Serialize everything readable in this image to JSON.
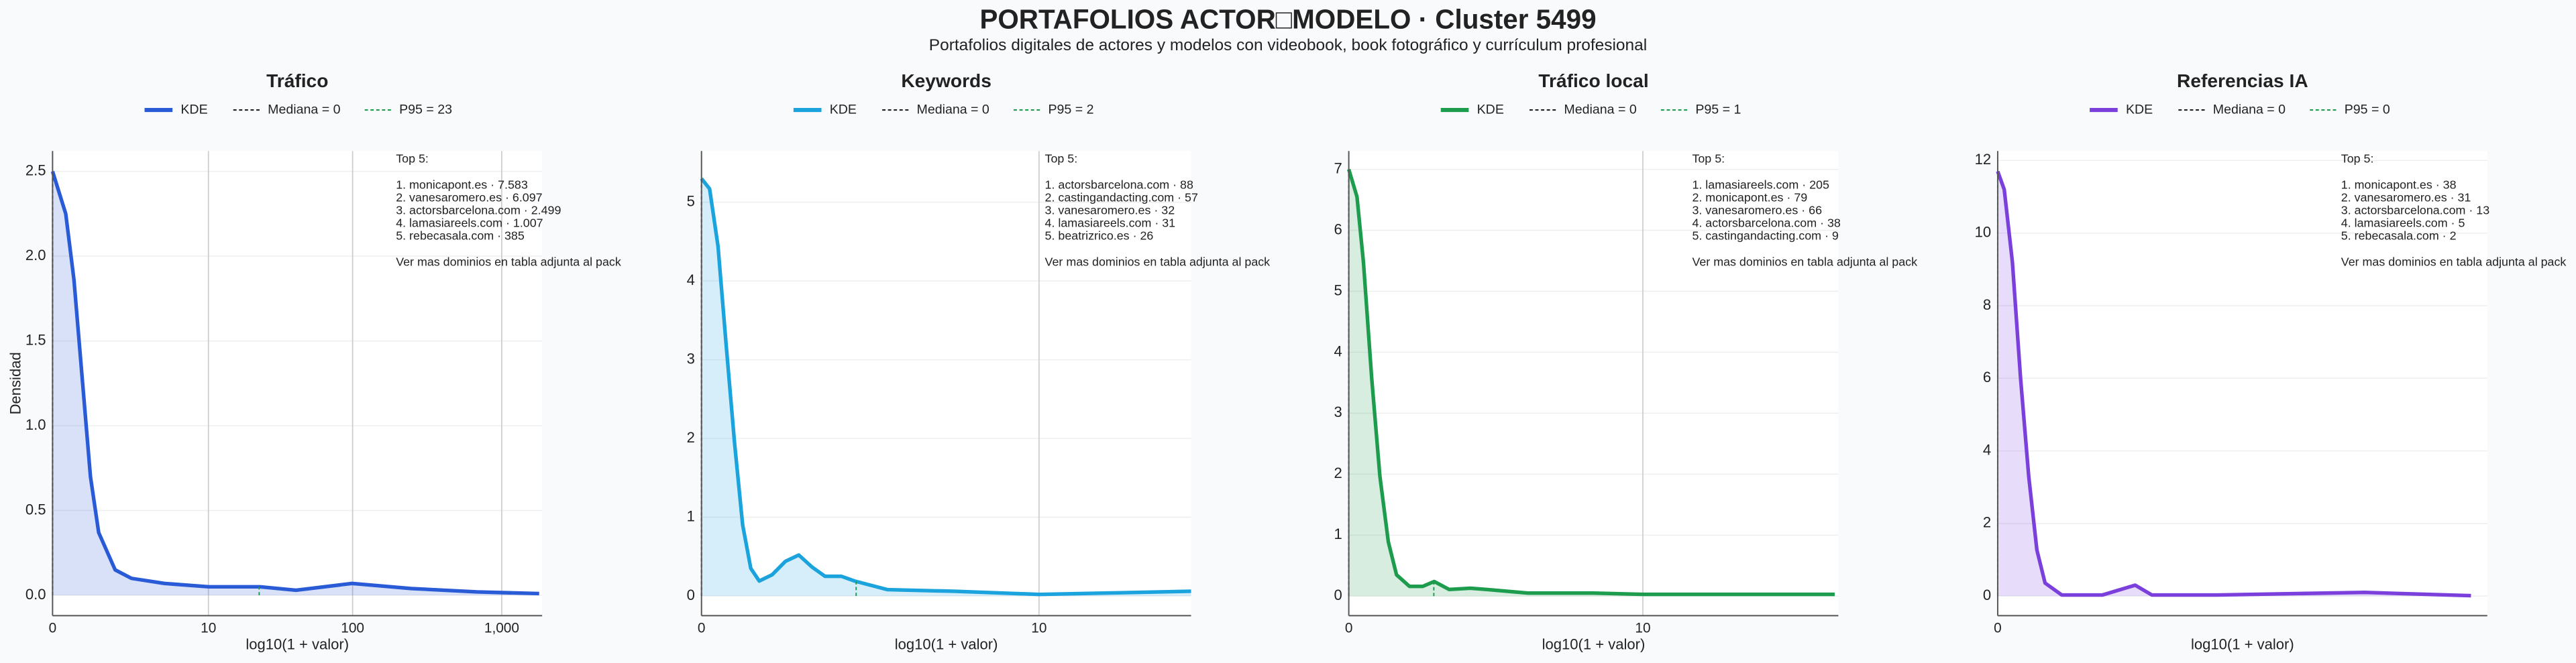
{
  "title": "PORTAFOLIOS ACTOR□MODELO · Cluster 5499",
  "subtitle": "Portafolios digitales de actores y modelos con videobook, book fotográfico y currículum profesional",
  "chart_data": [
    {
      "type": "line",
      "title": "Tráfico",
      "xlabel": "log10(1 + valor)",
      "ylabel": "Densidad",
      "grid": true,
      "series": [
        {
          "name": "KDE",
          "color": "#2a5bd7",
          "x": [
            0,
            0.088,
            0.143,
            0.198,
            0.253,
            0.308,
            0.418,
            0.527,
            0.747,
            1.044,
            1.385,
            1.626,
            2.0,
            2.396,
            2.835,
            3.25
          ],
          "values": [
            2.5,
            2.25,
            1.86,
            1.28,
            0.7,
            0.37,
            0.15,
            0.1,
            0.07,
            0.05,
            0.05,
            0.03,
            0.07,
            0.04,
            0.02,
            0.01
          ]
        }
      ],
      "median": {
        "name": "Mediana = 0",
        "x": 0
      },
      "p95": {
        "name": "P95 = 23",
        "x": 1.38
      },
      "xlim": [
        0,
        3.27
      ],
      "xticks": [
        0,
        {
          "value": 1.041,
          "label": "10"
        },
        {
          "value": 2.004,
          "label": "100"
        },
        {
          "value": 3.0,
          "label": "1,000"
        }
      ],
      "ylim": [
        -0.12,
        2.62
      ],
      "yticks": [
        {
          "value": 0,
          "label": "0.0"
        },
        0.5,
        {
          "value": 1,
          "label": "1.0"
        },
        1.5,
        {
          "value": 2,
          "label": "2.0"
        },
        2.5
      ],
      "annotation": {
        "header": "Top 5:",
        "items": [
          "1. monicapont.es · 7.583",
          "2. vanesaromero.es · 6.097",
          "3. actorsbarcelona.com · 2.499",
          "4. lamasiareels.com · 1.007",
          "5. rebecasala.com · 385"
        ],
        "footer": "Ver mas dominios en tabla adjunta al pack"
      }
    },
    {
      "type": "line",
      "title": "Keywords",
      "xlabel": "log10(1 + valor)",
      "grid": true,
      "series": [
        {
          "name": "KDE",
          "color": "#1aa3dc",
          "x": [
            0,
            0.025,
            0.051,
            0.076,
            0.102,
            0.127,
            0.152,
            0.178,
            0.218,
            0.259,
            0.3,
            0.34,
            0.381,
            0.431,
            0.472,
            0.574,
            0.777,
            1.041,
            1.284,
            1.51
          ],
          "values": [
            5.3,
            5.17,
            4.44,
            3.19,
            1.94,
            0.9,
            0.35,
            0.19,
            0.27,
            0.44,
            0.52,
            0.37,
            0.25,
            0.25,
            0.19,
            0.08,
            0.06,
            0.02,
            0.04,
            0.06
          ]
        }
      ],
      "median": {
        "name": "Mediana = 0",
        "x": 0
      },
      "p95": {
        "name": "P95 = 2",
        "x": 0.477
      },
      "xlim": [
        0,
        1.51
      ],
      "xticks": [
        0,
        {
          "value": 1.041,
          "label": "10"
        }
      ],
      "ylim": [
        -0.25,
        5.65
      ],
      "yticks": [
        0,
        1,
        2,
        3,
        4,
        5
      ],
      "annotation": {
        "header": "Top 5:",
        "items": [
          "1. actorsbarcelona.com · 88",
          "2. castingandacting.com · 57",
          "3. vanesaromero.es · 32",
          "4. lamasiareels.com · 31",
          "5. beatrizrico.es · 26"
        ],
        "footer": "Ver mas dominios en tabla adjunta al pack"
      }
    },
    {
      "type": "line",
      "title": "Tráfico local",
      "xlabel": "log10(1 + valor)",
      "grid": true,
      "series": [
        {
          "name": "KDE",
          "color": "#1e9c4e",
          "x": [
            0,
            0.029,
            0.052,
            0.081,
            0.11,
            0.14,
            0.169,
            0.215,
            0.262,
            0.302,
            0.355,
            0.43,
            0.488,
            0.634,
            0.866,
            1.041,
            1.39,
            1.72
          ],
          "values": [
            7.0,
            6.55,
            5.47,
            3.58,
            1.97,
            0.89,
            0.35,
            0.16,
            0.16,
            0.24,
            0.11,
            0.13,
            0.11,
            0.05,
            0.05,
            0.03,
            0.03,
            0.03
          ]
        }
      ],
      "median": {
        "name": "Mediana = 0",
        "x": 0
      },
      "p95": {
        "name": "P95 = 1",
        "x": 0.301
      },
      "xlim": [
        0,
        1.733
      ],
      "xticks": [
        0,
        {
          "value": 1.041,
          "label": "10"
        }
      ],
      "ylim": [
        -0.32,
        7.3
      ],
      "yticks": [
        0,
        1,
        2,
        3,
        4,
        5,
        6,
        7
      ],
      "annotation": {
        "header": "Top 5:",
        "items": [
          "1. lamasiareels.com · 205",
          "2. monicapont.es · 79",
          "3. vanesaromero.es · 66",
          "4. actorsbarcelona.com · 38",
          "5. castingandacting.com · 9"
        ],
        "footer": "Ver mas dominios en tabla adjunta al pack"
      }
    },
    {
      "type": "line",
      "title": "Referencias IA",
      "xlabel": "log10(1 + valor)",
      "grid": true,
      "series": [
        {
          "name": "KDE",
          "color": "#7b3fdc",
          "x": [
            0,
            0.016,
            0.036,
            0.056,
            0.076,
            0.096,
            0.116,
            0.157,
            0.257,
            0.337,
            0.378,
            0.538,
            0.9,
            1.16
          ],
          "values": [
            11.7,
            11.2,
            9.2,
            6.0,
            3.3,
            1.27,
            0.36,
            0.03,
            0.03,
            0.3,
            0.03,
            0.03,
            0.1,
            0.01
          ]
        }
      ],
      "median": {
        "name": "Mediana = 0",
        "x": 0
      },
      "p95": {
        "name": "P95 = 0",
        "x": 0
      },
      "xlim": [
        0,
        1.2
      ],
      "xticks": [
        0
      ],
      "ylim": [
        -0.54,
        12.26
      ],
      "yticks": [
        0,
        2,
        4,
        6,
        8,
        10,
        12
      ],
      "annotation": {
        "header": "Top 5:",
        "items": [
          "1. monicapont.es · 38",
          "2. vanesaromero.es · 31",
          "3. actorsbarcelona.com · 13",
          "4. lamasiareels.com · 5",
          "5. rebecasala.com · 2"
        ],
        "footer": "Ver mas dominios en tabla adjunta al pack"
      }
    }
  ]
}
